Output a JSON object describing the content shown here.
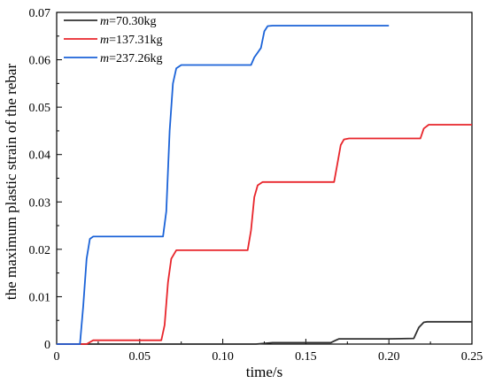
{
  "chart_data": {
    "type": "line",
    "title": "",
    "xlabel": "time/s",
    "ylabel": "the maximum plastic strain of the rebar",
    "xlim": [
      0,
      0.25
    ],
    "ylim": [
      0,
      0.07
    ],
    "xticks": [
      0,
      0.05,
      0.1,
      0.15,
      0.2,
      0.25
    ],
    "xtick_labels": [
      "0",
      "0.05",
      "0.10",
      "0.15",
      "0.20",
      "0.25"
    ],
    "yticks": [
      0,
      0.01,
      0.02,
      0.03,
      0.04,
      0.05,
      0.06,
      0.07
    ],
    "ytick_labels": [
      "0",
      "0.01",
      "0.02",
      "0.03",
      "0.04",
      "0.05",
      "0.06",
      "0.07"
    ],
    "grid": false,
    "legend_position": "top-left",
    "series": [
      {
        "name": "m=70.30kg",
        "name_italic": "m",
        "name_rest": "=70.30kg",
        "color": "#303030",
        "x": [
          0.0,
          0.12,
          0.13,
          0.165,
          0.168,
          0.17,
          0.2,
          0.215,
          0.218,
          0.221,
          0.223,
          0.25
        ],
        "y": [
          0.0,
          0.0,
          0.0003,
          0.0003,
          0.0008,
          0.0011,
          0.0011,
          0.0012,
          0.0035,
          0.0046,
          0.0047,
          0.0047
        ]
      },
      {
        "name": "m=137.31kg",
        "name_italic": "m",
        "name_rest": "=137.31kg",
        "color": "#e8252b",
        "x": [
          0.0,
          0.018,
          0.022,
          0.063,
          0.065,
          0.067,
          0.069,
          0.072,
          0.115,
          0.117,
          0.119,
          0.121,
          0.124,
          0.167,
          0.169,
          0.171,
          0.173,
          0.176,
          0.219,
          0.221,
          0.224,
          0.25
        ],
        "y": [
          0.0,
          0.0,
          0.0008,
          0.0008,
          0.004,
          0.013,
          0.018,
          0.0198,
          0.0198,
          0.024,
          0.031,
          0.0335,
          0.0342,
          0.0342,
          0.038,
          0.042,
          0.0432,
          0.0434,
          0.0434,
          0.0455,
          0.0463,
          0.0463
        ]
      },
      {
        "name": "m=237.26kg",
        "name_italic": "m",
        "name_rest": "=237.26kg",
        "color": "#1b63d8",
        "x": [
          0.0,
          0.014,
          0.016,
          0.018,
          0.02,
          0.022,
          0.064,
          0.066,
          0.068,
          0.07,
          0.072,
          0.075,
          0.117,
          0.119,
          0.121,
          0.123,
          0.125,
          0.127,
          0.13,
          0.2
        ],
        "y": [
          0.0,
          0.0,
          0.008,
          0.018,
          0.0222,
          0.0227,
          0.0227,
          0.028,
          0.045,
          0.055,
          0.0582,
          0.0589,
          0.0589,
          0.0605,
          0.0615,
          0.0625,
          0.066,
          0.0671,
          0.0672,
          0.0672
        ]
      }
    ]
  }
}
